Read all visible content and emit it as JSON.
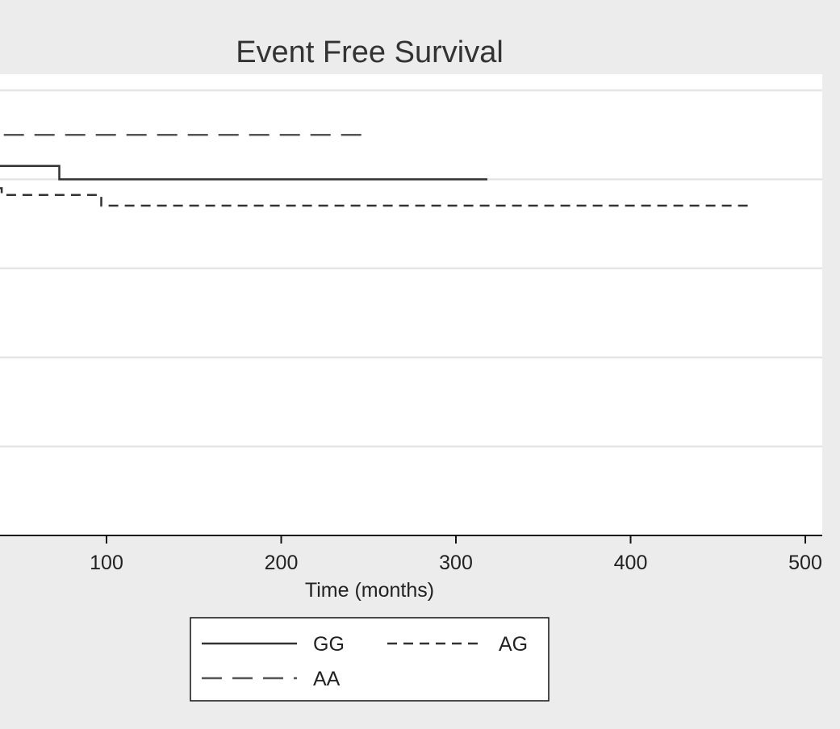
{
  "chart_data": {
    "type": "line",
    "title": "Event Free Survival",
    "xlabel": "Time (months)",
    "ylabel": "",
    "x_ticks": [
      100,
      200,
      300,
      400,
      500
    ],
    "xlim": [
      -29,
      505
    ],
    "ylim": [
      0,
      1.04
    ],
    "y_gridlines": [
      0.2,
      0.4,
      0.6,
      0.8,
      1.0
    ],
    "grid": true,
    "legend_position": "bottom",
    "series": [
      {
        "name": "GG",
        "style": "solid",
        "color": "#333333",
        "points": [
          [
            -29,
            0.83
          ],
          [
            73,
            0.83
          ],
          [
            73,
            0.8
          ],
          [
            318,
            0.8
          ]
        ]
      },
      {
        "name": "AG",
        "style": "short-dash",
        "color": "#333333",
        "points": [
          [
            -29,
            0.81
          ],
          [
            10,
            0.81
          ],
          [
            10,
            0.795
          ],
          [
            25,
            0.795
          ],
          [
            25,
            0.78
          ],
          [
            40,
            0.78
          ],
          [
            40,
            0.765
          ],
          [
            97,
            0.765
          ],
          [
            97,
            0.741
          ],
          [
            470,
            0.741
          ]
        ]
      },
      {
        "name": "AA",
        "style": "long-dash",
        "color": "#555555",
        "points": [
          [
            -29,
            0.9
          ],
          [
            246,
            0.9
          ]
        ]
      }
    ]
  }
}
